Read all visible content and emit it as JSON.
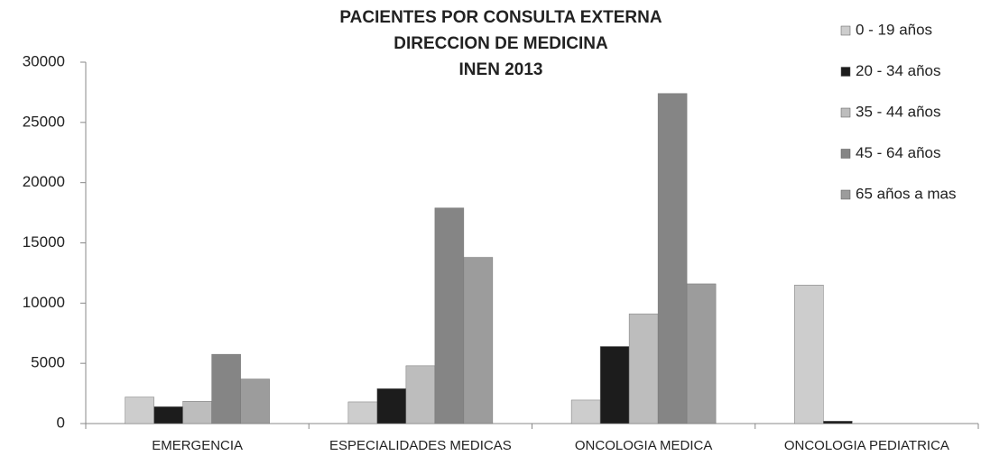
{
  "chart_data": {
    "type": "bar",
    "title": [
      "PACIENTES POR CONSULTA EXTERNA",
      "DIRECCION DE MEDICINA",
      "INEN 2013"
    ],
    "categories": [
      "EMERGENCIA",
      "ESPECIALIDADES MEDICAS",
      "ONCOLOGIA MEDICA",
      "ONCOLOGIA PEDIATRICA"
    ],
    "series": [
      {
        "name": "0 - 19 años",
        "color": "#cdcdcd",
        "values": [
          2200,
          1800,
          1950,
          11500
        ]
      },
      {
        "name": "20 - 34 años",
        "color": "#1c1c1c",
        "values": [
          1400,
          2900,
          6400,
          200
        ]
      },
      {
        "name": "35 - 44 años",
        "color": "#bdbdbd",
        "values": [
          1850,
          4800,
          9100,
          0
        ]
      },
      {
        "name": "45 - 64 años",
        "color": "#858585",
        "values": [
          5750,
          17900,
          27400,
          0
        ]
      },
      {
        "name": "65 años a mas",
        "color": "#9c9c9c",
        "values": [
          3700,
          13800,
          11600,
          0
        ]
      }
    ],
    "ylim": [
      0,
      30000
    ],
    "yticks": [
      0,
      5000,
      10000,
      15000,
      20000,
      25000,
      30000
    ],
    "legend": "right"
  }
}
